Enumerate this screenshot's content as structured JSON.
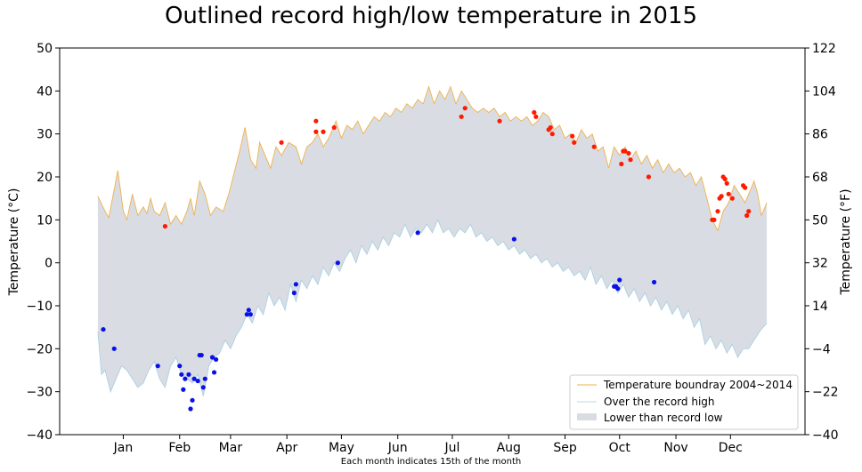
{
  "chart_data": {
    "type": "line",
    "title": "Outlined record high/low temperature in 2015",
    "xlabel": "Each month indicates 15th of the month",
    "ylabel_left": "Temperature ($^\\circ$C)",
    "ylabel_left_display": "Temperature (°C)",
    "ylabel_right": "Temperature (°F)",
    "x_domain": [
      -20,
      390
    ],
    "ylim": [
      -40,
      50
    ],
    "yticks_left": [
      -40,
      -30,
      -20,
      -10,
      0,
      10,
      20,
      30,
      40,
      50
    ],
    "yticks_right": [
      "−40",
      "−22",
      "−4",
      "14",
      "32",
      "50",
      "68",
      "86",
      "104",
      "122"
    ],
    "month_ticks": [
      {
        "day": 15,
        "label": "Jan"
      },
      {
        "day": 46,
        "label": "Feb"
      },
      {
        "day": 74,
        "label": "Mar"
      },
      {
        "day": 105,
        "label": "Apr"
      },
      {
        "day": 135,
        "label": "May"
      },
      {
        "day": 166,
        "label": "Jun"
      },
      {
        "day": 196,
        "label": "Jul"
      },
      {
        "day": 227,
        "label": "Aug"
      },
      {
        "day": 258,
        "label": "Sep"
      },
      {
        "day": 288,
        "label": "Oct"
      },
      {
        "day": 319,
        "label": "Nov"
      },
      {
        "day": 349,
        "label": "Dec"
      }
    ],
    "record_high_2004_2014": [
      [
        1,
        15.5
      ],
      [
        5,
        12
      ],
      [
        7,
        10.5
      ],
      [
        10,
        17
      ],
      [
        12,
        21.5
      ],
      [
        15,
        12
      ],
      [
        17,
        10
      ],
      [
        20,
        16
      ],
      [
        23,
        11
      ],
      [
        26,
        13
      ],
      [
        28,
        11.5
      ],
      [
        30,
        15
      ],
      [
        32,
        12
      ],
      [
        35,
        11
      ],
      [
        38,
        14
      ],
      [
        41,
        9
      ],
      [
        44,
        11
      ],
      [
        47,
        9
      ],
      [
        50,
        12
      ],
      [
        52,
        15
      ],
      [
        54,
        11
      ],
      [
        57,
        19
      ],
      [
        60,
        16
      ],
      [
        63,
        11
      ],
      [
        66,
        13
      ],
      [
        70,
        12
      ],
      [
        73,
        16
      ],
      [
        76,
        21
      ],
      [
        79,
        26
      ],
      [
        82,
        31.5
      ],
      [
        85,
        24
      ],
      [
        88,
        22
      ],
      [
        90,
        28
      ],
      [
        93,
        25
      ],
      [
        96,
        22
      ],
      [
        99,
        27
      ],
      [
        102,
        25
      ],
      [
        106,
        28
      ],
      [
        110,
        27
      ],
      [
        113,
        23
      ],
      [
        116,
        27
      ],
      [
        119,
        28
      ],
      [
        122,
        30
      ],
      [
        125,
        27
      ],
      [
        128,
        29
      ],
      [
        132,
        33
      ],
      [
        135,
        29
      ],
      [
        138,
        32
      ],
      [
        141,
        31
      ],
      [
        144,
        33
      ],
      [
        147,
        30
      ],
      [
        150,
        32
      ],
      [
        153,
        34
      ],
      [
        156,
        33
      ],
      [
        159,
        35
      ],
      [
        162,
        34
      ],
      [
        165,
        36
      ],
      [
        168,
        35
      ],
      [
        171,
        37
      ],
      [
        174,
        36
      ],
      [
        177,
        38
      ],
      [
        180,
        37
      ],
      [
        183,
        41
      ],
      [
        186,
        37
      ],
      [
        189,
        40
      ],
      [
        192,
        38
      ],
      [
        195,
        41
      ],
      [
        198,
        37
      ],
      [
        201,
        40
      ],
      [
        204,
        38
      ],
      [
        207,
        36
      ],
      [
        210,
        35
      ],
      [
        213,
        36
      ],
      [
        216,
        35
      ],
      [
        219,
        36
      ],
      [
        222,
        34
      ],
      [
        225,
        35
      ],
      [
        228,
        33
      ],
      [
        231,
        34
      ],
      [
        234,
        33
      ],
      [
        237,
        34
      ],
      [
        240,
        32
      ],
      [
        243,
        33
      ],
      [
        246,
        35
      ],
      [
        249,
        34
      ],
      [
        252,
        31
      ],
      [
        255,
        32
      ],
      [
        258,
        29
      ],
      [
        261,
        30
      ],
      [
        264,
        28
      ],
      [
        267,
        31
      ],
      [
        270,
        29
      ],
      [
        273,
        30
      ],
      [
        276,
        26
      ],
      [
        279,
        27
      ],
      [
        282,
        22
      ],
      [
        285,
        27
      ],
      [
        288,
        25
      ],
      [
        291,
        27
      ],
      [
        294,
        24
      ],
      [
        297,
        26
      ],
      [
        300,
        23
      ],
      [
        303,
        25
      ],
      [
        306,
        22
      ],
      [
        309,
        24
      ],
      [
        312,
        21
      ],
      [
        315,
        23
      ],
      [
        318,
        21
      ],
      [
        321,
        22
      ],
      [
        324,
        20
      ],
      [
        327,
        21
      ],
      [
        330,
        18
      ],
      [
        333,
        20
      ],
      [
        336,
        15
      ],
      [
        339,
        10
      ],
      [
        342,
        7.5
      ],
      [
        345,
        12
      ],
      [
        348,
        14
      ],
      [
        351,
        18
      ],
      [
        354,
        16
      ],
      [
        357,
        14
      ],
      [
        360,
        17
      ],
      [
        362,
        19
      ],
      [
        364,
        16
      ],
      [
        366,
        11
      ],
      [
        369,
        14
      ]
    ],
    "record_low_2004_2014": [
      [
        1,
        -16
      ],
      [
        3,
        -26
      ],
      [
        5,
        -25
      ],
      [
        8,
        -30
      ],
      [
        11,
        -27
      ],
      [
        14,
        -24
      ],
      [
        17,
        -25
      ],
      [
        20,
        -27
      ],
      [
        23,
        -29
      ],
      [
        26,
        -28
      ],
      [
        29,
        -25
      ],
      [
        32,
        -23
      ],
      [
        35,
        -27
      ],
      [
        38,
        -29
      ],
      [
        41,
        -24
      ],
      [
        44,
        -22
      ],
      [
        47,
        -26
      ],
      [
        50,
        -27
      ],
      [
        53,
        -28
      ],
      [
        56,
        -26
      ],
      [
        59,
        -31
      ],
      [
        62,
        -24
      ],
      [
        65,
        -22
      ],
      [
        68,
        -21
      ],
      [
        71,
        -18
      ],
      [
        74,
        -20
      ],
      [
        77,
        -17
      ],
      [
        80,
        -15
      ],
      [
        83,
        -12
      ],
      [
        86,
        -14
      ],
      [
        89,
        -10
      ],
      [
        92,
        -12
      ],
      [
        95,
        -7
      ],
      [
        98,
        -10
      ],
      [
        101,
        -8
      ],
      [
        104,
        -11
      ],
      [
        107,
        -5
      ],
      [
        110,
        -9
      ],
      [
        113,
        -4
      ],
      [
        116,
        -6
      ],
      [
        119,
        -3
      ],
      [
        122,
        -5
      ],
      [
        125,
        -1
      ],
      [
        128,
        -3
      ],
      [
        131,
        0
      ],
      [
        134,
        -2
      ],
      [
        137,
        1
      ],
      [
        140,
        3
      ],
      [
        143,
        0
      ],
      [
        146,
        4
      ],
      [
        149,
        2
      ],
      [
        152,
        5
      ],
      [
        155,
        3
      ],
      [
        158,
        6
      ],
      [
        161,
        4
      ],
      [
        164,
        7
      ],
      [
        167,
        6
      ],
      [
        170,
        9
      ],
      [
        173,
        6
      ],
      [
        176,
        8
      ],
      [
        179,
        7
      ],
      [
        182,
        9
      ],
      [
        185,
        7
      ],
      [
        188,
        10
      ],
      [
        191,
        7
      ],
      [
        194,
        8
      ],
      [
        197,
        6
      ],
      [
        200,
        8
      ],
      [
        203,
        7
      ],
      [
        206,
        9
      ],
      [
        209,
        6
      ],
      [
        212,
        7
      ],
      [
        215,
        5
      ],
      [
        218,
        6
      ],
      [
        221,
        4
      ],
      [
        224,
        5
      ],
      [
        227,
        3
      ],
      [
        230,
        4
      ],
      [
        233,
        2
      ],
      [
        236,
        3
      ],
      [
        239,
        1
      ],
      [
        242,
        2
      ],
      [
        245,
        0
      ],
      [
        248,
        1
      ],
      [
        251,
        -1
      ],
      [
        254,
        0
      ],
      [
        257,
        -2
      ],
      [
        260,
        -1
      ],
      [
        263,
        -3
      ],
      [
        266,
        -2
      ],
      [
        269,
        -4
      ],
      [
        272,
        -1
      ],
      [
        275,
        -5
      ],
      [
        278,
        -3
      ],
      [
        281,
        -6
      ],
      [
        284,
        -4
      ],
      [
        287,
        -7
      ],
      [
        290,
        -5
      ],
      [
        293,
        -8
      ],
      [
        296,
        -6
      ],
      [
        299,
        -9
      ],
      [
        302,
        -7
      ],
      [
        305,
        -10
      ],
      [
        308,
        -8
      ],
      [
        311,
        -11
      ],
      [
        314,
        -9
      ],
      [
        317,
        -12
      ],
      [
        320,
        -10
      ],
      [
        323,
        -13
      ],
      [
        326,
        -11
      ],
      [
        329,
        -15
      ],
      [
        332,
        -13
      ],
      [
        335,
        -19
      ],
      [
        338,
        -17
      ],
      [
        341,
        -20
      ],
      [
        344,
        -18
      ],
      [
        347,
        -21
      ],
      [
        350,
        -19
      ],
      [
        353,
        -22
      ],
      [
        356,
        -20
      ],
      [
        359,
        -20
      ],
      [
        362,
        -18
      ],
      [
        365,
        -16
      ],
      [
        369,
        -14
      ]
    ],
    "high_points_2015": [
      [
        38,
        8.5
      ],
      [
        102,
        28
      ],
      [
        121,
        33
      ],
      [
        121,
        30.5
      ],
      [
        125,
        30.5
      ],
      [
        131,
        31.5
      ],
      [
        201,
        34
      ],
      [
        203,
        36
      ],
      [
        222,
        33
      ],
      [
        241,
        35
      ],
      [
        242,
        34
      ],
      [
        249,
        31
      ],
      [
        250,
        31.5
      ],
      [
        251,
        30
      ],
      [
        262,
        29.5
      ],
      [
        263,
        28
      ],
      [
        274,
        27
      ],
      [
        289,
        23
      ],
      [
        290,
        26
      ],
      [
        291,
        26
      ],
      [
        293,
        25.5
      ],
      [
        294,
        24
      ],
      [
        304,
        20
      ],
      [
        339,
        10
      ],
      [
        340,
        10
      ],
      [
        342,
        12
      ],
      [
        343,
        15
      ],
      [
        344,
        15.5
      ],
      [
        345,
        20
      ],
      [
        346,
        19.5
      ],
      [
        347,
        18.5
      ],
      [
        348,
        16
      ],
      [
        350,
        15
      ],
      [
        356,
        18
      ],
      [
        357,
        17.5
      ],
      [
        358,
        11
      ],
      [
        359,
        12
      ]
    ],
    "low_points_2015": [
      [
        4,
        -15.5
      ],
      [
        10,
        -20
      ],
      [
        34,
        -24
      ],
      [
        46,
        -24
      ],
      [
        47,
        -26
      ],
      [
        48,
        -29.5
      ],
      [
        49,
        -27
      ],
      [
        51,
        -26
      ],
      [
        52,
        -34
      ],
      [
        53,
        -32
      ],
      [
        54,
        -27
      ],
      [
        56,
        -27.5
      ],
      [
        57,
        -21.5
      ],
      [
        58,
        -21.5
      ],
      [
        59,
        -29
      ],
      [
        60,
        -27
      ],
      [
        64,
        -22
      ],
      [
        65,
        -25.5
      ],
      [
        66,
        -22.5
      ],
      [
        83,
        -12
      ],
      [
        84,
        -11
      ],
      [
        85,
        -12
      ],
      [
        109,
        -7
      ],
      [
        110,
        -5
      ],
      [
        133,
        0
      ],
      [
        177,
        7
      ],
      [
        230,
        5.5
      ],
      [
        285,
        -5.5
      ],
      [
        286,
        -5.5
      ],
      [
        287,
        -6
      ],
      [
        288,
        -4
      ],
      [
        307,
        -4.5
      ]
    ]
  },
  "legend": {
    "items": [
      {
        "label": "Temperature boundray 2004~2014",
        "color": "#f0b04a"
      },
      {
        "label": "Over the record high",
        "color": "#b8d8e8"
      },
      {
        "label": "Lower than record low",
        "color": "#d9dde3"
      }
    ],
    "placement": "lower-right"
  },
  "colors": {
    "fill_band": "#d9dde3",
    "high_line": "#f0b04a",
    "low_line": "#a9d0e3",
    "high_points": "#ff1a00",
    "low_points": "#0a10e8"
  }
}
